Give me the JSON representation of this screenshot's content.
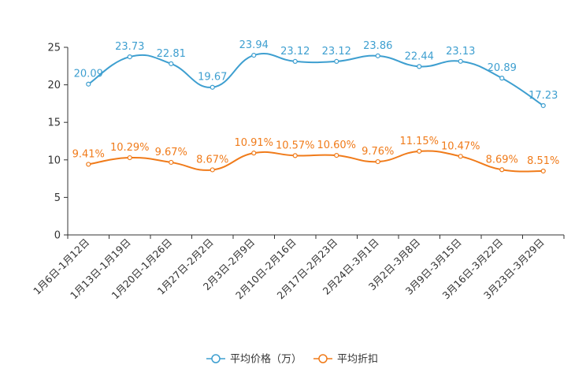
{
  "chart_data": {
    "type": "line",
    "categories": [
      "1月6日-1月12日",
      "1月13日-1月19日",
      "1月20日-1月26日",
      "1月27日-2月2日",
      "2月3日-2月9日",
      "2月10日-2月16日",
      "2月17日-2月23日",
      "2月24日-3月1日",
      "3月2日-3月8日",
      "3月9日-3月15日",
      "3月16日-3月22日",
      "3月23日-3月29日"
    ],
    "ylim": [
      0,
      25
    ],
    "yticks": [
      0,
      5,
      10,
      15,
      20,
      25
    ],
    "series": [
      {
        "name": "平均价格（万）",
        "color": "#3e9fd0",
        "values": [
          20.09,
          23.73,
          22.81,
          19.67,
          23.94,
          23.12,
          23.12,
          23.86,
          22.44,
          23.13,
          20.89,
          17.23
        ],
        "labels": [
          "20.09",
          "23.73",
          "22.81",
          "19.67",
          "23.94",
          "23.12",
          "23.12",
          "23.86",
          "22.44",
          "23.13",
          "20.89",
          "17.23"
        ]
      },
      {
        "name": "平均折扣",
        "color": "#f07b1a",
        "values": [
          9.41,
          10.29,
          9.67,
          8.67,
          10.91,
          10.57,
          10.6,
          9.76,
          11.15,
          10.47,
          8.69,
          8.51
        ],
        "labels": [
          "9.41%",
          "10.29%",
          "9.67%",
          "8.67%",
          "10.91%",
          "10.57%",
          "10.60%",
          "9.76%",
          "11.15%",
          "10.47%",
          "8.69%",
          "8.51%"
        ]
      }
    ]
  }
}
